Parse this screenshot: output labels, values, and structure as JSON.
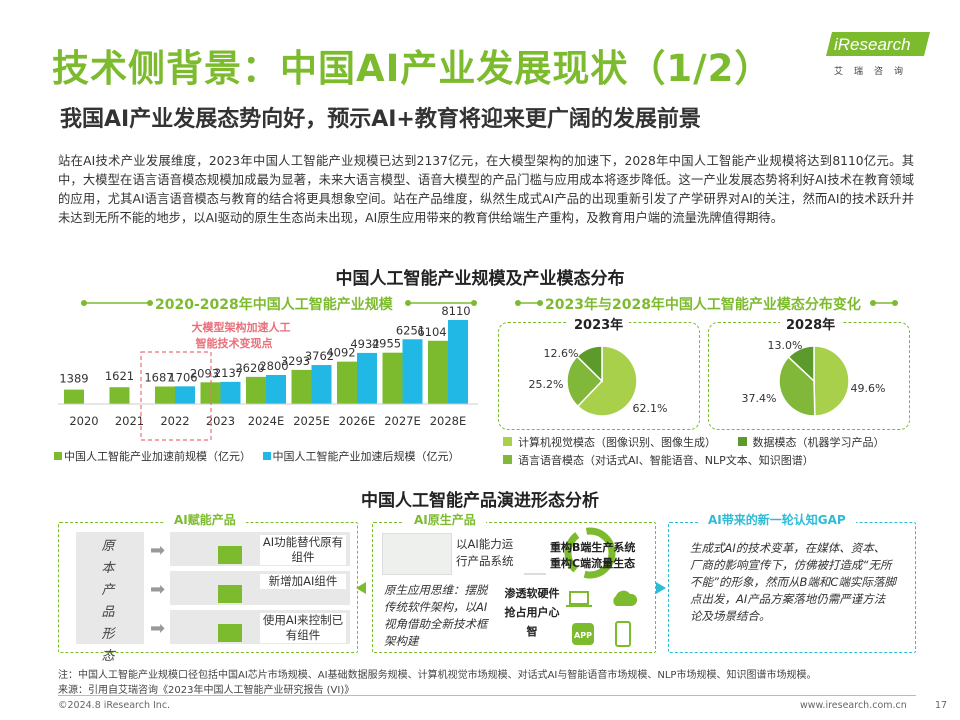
{
  "page": {
    "title": "技术侧背景：中国AI产业发展现状（1/2）",
    "subtitle": "我国AI产业发展态势向好，预示AI+教育将迎来更广阔的发展前景",
    "intro": "站在AI技术产业发展维度，2023年中国人工智能产业规模已达到2137亿元，在大模型架构的加速下，2028年中国人工智能产业规模将达到8110亿元。其中，大模型在语言语音模态规模加成最为显著，未来大语言模型、语音大模型的产品门槛与应用成本将逐步降低。这一产业发展态势将利好AI技术在教育领域的应用，尤其AI语言语音模态与教育的结合将更具想象空间。站在产品维度，纵然生成式AI产品的出现重新引发了产学研界对AI的关注，然而AI的技术跃升并未达到无所不能的地步，以AI驱动的原生生态尚未出现，AI原生应用带来的教育供给端生产重构，及教育用户端的流量洗牌值得期待。",
    "section1_title": "中国人工智能产业规模及产业模态分布",
    "section2_title": "中国人工智能产品演进形态分析",
    "note": "注：中国人工智能产业规模口径包括中国AI芯片市场规模、AI基础数据服务规模、计算机视觉市场规模、对话式AI与智能语音市场规模、NLP市场规模、知识图谱市场规模。",
    "source": "来源：引用自艾瑞咨询《2023年中国人工智能产业研究报告 (VI)》",
    "copyright": "©2024.8 iResearch Inc.",
    "website": "www.iresearch.com.cn",
    "page_number": "17"
  },
  "logo": {
    "word": "iResearch",
    "cn": "艾瑞咨询"
  },
  "colors": {
    "green": "#7dbb2e",
    "cyan": "#22b8e6",
    "pie_dark": "#5c9a2c",
    "pie_light": "#a8d04a",
    "pie_mid": "#82b83a",
    "red_note": "#e8707a"
  },
  "chart_data": [
    {
      "type": "bar",
      "title": "2020-2028年中国人工智能产业规模",
      "categories": [
        "2020",
        "2021",
        "2022",
        "2023",
        "2024E",
        "2025E",
        "2026E",
        "2027E",
        "2028E"
      ],
      "series": [
        {
          "name": "中国人工智能产业加速前规模（亿元）",
          "values": [
            1389,
            1621,
            1687,
            2093,
            2620,
            3293,
            4092,
            4955,
            6104
          ]
        },
        {
          "name": "中国人工智能产业加速后规模（亿元）",
          "values": [
            null,
            null,
            1706,
            2137,
            2800,
            3762,
            4932,
            6251,
            8110
          ]
        }
      ],
      "annotation": "大模型架构加速人工智能技术变现点",
      "ylim": [
        0,
        8110
      ]
    },
    {
      "type": "pie",
      "title": "2023年与2028年中国人工智能产业模态分布变化",
      "legend": [
        "计算机视觉模态（图像识别、图像生成）",
        "数据模态（机器学习产品）",
        "语言语音模态（对话式AI、智能语音、NLP文本、知识图谱）"
      ],
      "pies": [
        {
          "label": "2023年",
          "values": [
            62.1,
            25.2,
            12.6
          ],
          "value_labels": [
            "62.1%",
            "25.2%",
            "12.6%"
          ]
        },
        {
          "label": "2028年",
          "values": [
            49.6,
            37.4,
            13.0
          ],
          "value_labels": [
            "49.6%",
            "37.4%",
            "13.0%"
          ]
        }
      ]
    }
  ],
  "evolution": {
    "left_tag": "AI赋能产品",
    "left_side_label": "原本产品形态",
    "left_rows": [
      "AI功能替代原有组件",
      "新增加AI组件",
      "使用AI来控制已有组件"
    ],
    "mid_tag": "AI原生产品",
    "mid_box_text": "以AI能力运行产品系统",
    "mid_desc": "原生应用思维：摆脱传统软件架构，以AI视角借助全新技术框架构建",
    "mid_cycle": [
      "重构B端生产系统",
      "重构C端流量生态"
    ],
    "mid_steps": [
      "渗透软硬件",
      "抢占用户心智"
    ],
    "app_label": "APP",
    "right_tag": "AI带来的新一轮认知GAP",
    "right_text": "生成式AI的技术变革，在媒体、资本、厂商的影响宣传下，仿佛被打造成“无所不能”的形象，然而从B端和C端实际落脚点出发，AI产品方案落地仍需严谨方法论及场景结合。"
  }
}
